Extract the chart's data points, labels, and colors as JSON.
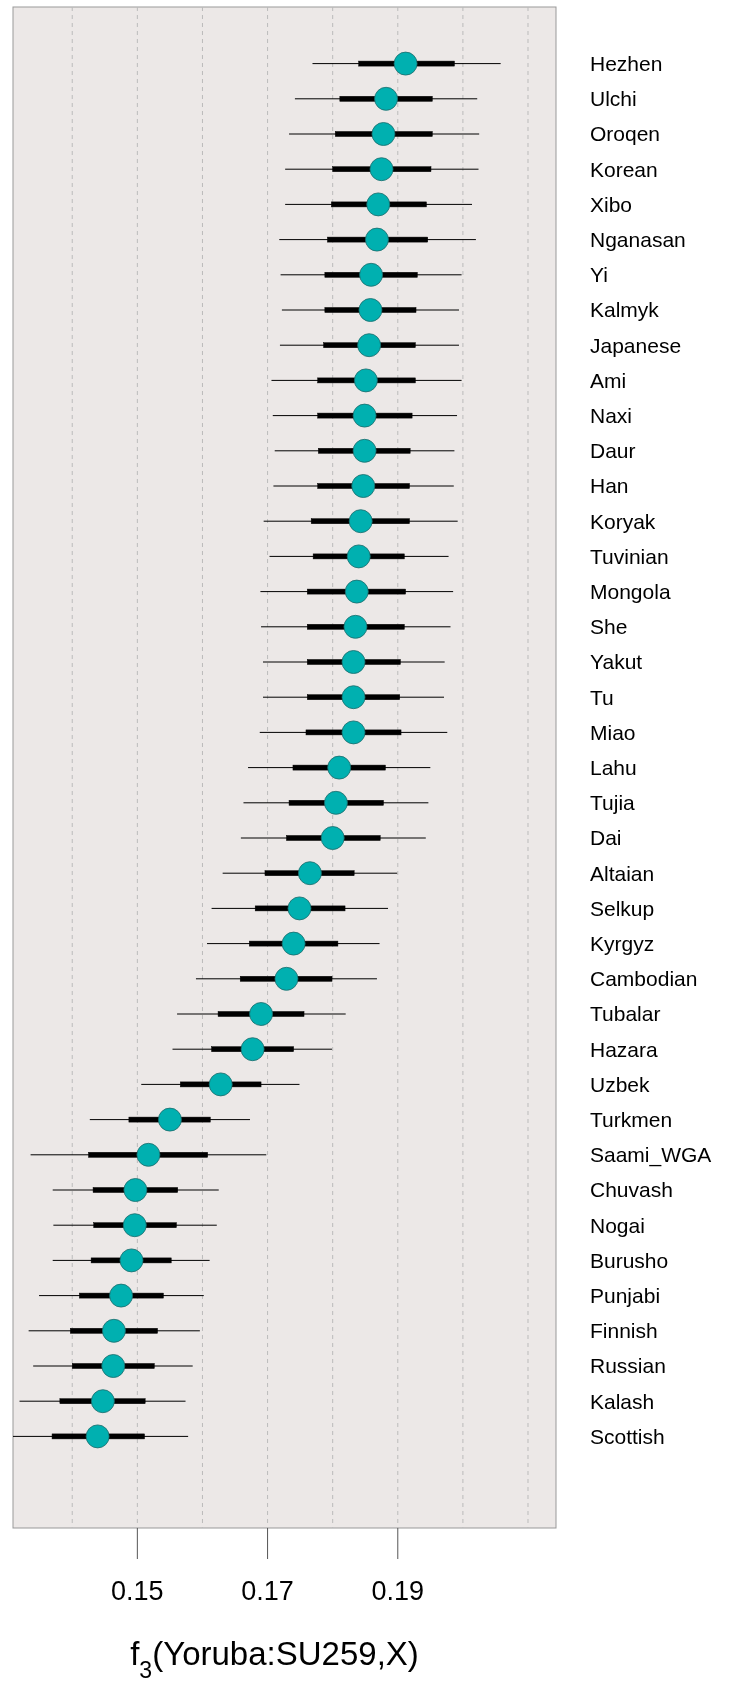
{
  "chart_data": {
    "type": "box",
    "orientation": "horizontal",
    "xlabel": "f$_{3}$(Yoruba:SU259,X)",
    "categories": [
      "Hezhen",
      "Ulchi",
      "Oroqen",
      "Korean",
      "Xibo",
      "Nganasan",
      "Yi",
      "Kalmyk",
      "Japanese",
      "Ami",
      "Naxi",
      "Daur",
      "Han",
      "Koryak",
      "Tuvinian",
      "Mongola",
      "She",
      "Yakut",
      "Tu",
      "Miao",
      "Lahu",
      "Tujia",
      "Dai",
      "Altaian",
      "Selkup",
      "Kyrgyz",
      "Cambodian",
      "Tubalar",
      "Hazara",
      "Uzbek",
      "Turkmen",
      "Saami_WGA",
      "Chuvash",
      "Nogai",
      "Burusho",
      "Punjabi",
      "Finnish",
      "Russian",
      "Kalash",
      "Scottish"
    ],
    "xlim": [
      0.1309,
      0.2143
    ],
    "xticks": [
      {
        "value": 0.14,
        "label": null
      },
      0.15,
      {
        "value": 0.16,
        "label": null
      },
      0.17,
      {
        "value": 0.18,
        "label": null
      },
      0.19,
      {
        "value": 0.2,
        "label": null
      },
      {
        "value": 0.21,
        "label": null
      }
    ],
    "grid": "x",
    "marker": "circle",
    "series": [
      {
        "type": "scatter",
        "color": "#00b0b0",
        "values": [
          0.1912,
          0.1882,
          0.1878,
          0.1875,
          0.187,
          0.1868,
          0.1859,
          0.1858,
          0.1856,
          0.1851,
          0.1849,
          0.1849,
          0.1847,
          0.1843,
          0.184,
          0.1837,
          0.1835,
          0.1832,
          0.1832,
          0.1832,
          0.181,
          0.1805,
          0.18,
          0.1765,
          0.1749,
          0.174,
          0.1729,
          0.169,
          0.1677,
          0.1628,
          0.155,
          0.1517,
          0.1497,
          0.1496,
          0.1491,
          0.1475,
          0.1464,
          0.1463,
          0.1447,
          0.1439
        ]
      },
      {
        "type": "box",
        "color": "#000000",
        "boxes": [
          {
            "low": 0.1769,
            "q1": 0.184,
            "q3": 0.1987,
            "high": 0.2058
          },
          {
            "low": 0.1742,
            "q1": 0.1811,
            "q3": 0.1953,
            "high": 0.2022
          },
          {
            "low": 0.1733,
            "q1": 0.1804,
            "q3": 0.1953,
            "high": 0.2025
          },
          {
            "low": 0.1727,
            "q1": 0.18,
            "q3": 0.1951,
            "high": 0.2024
          },
          {
            "low": 0.1727,
            "q1": 0.1798,
            "q3": 0.1944,
            "high": 0.2014
          },
          {
            "low": 0.1718,
            "q1": 0.1792,
            "q3": 0.1946,
            "high": 0.202
          },
          {
            "low": 0.172,
            "q1": 0.1788,
            "q3": 0.193,
            "high": 0.1998
          },
          {
            "low": 0.1722,
            "q1": 0.1788,
            "q3": 0.1928,
            "high": 0.1994
          },
          {
            "low": 0.1719,
            "q1": 0.1786,
            "q3": 0.1927,
            "high": 0.1994
          },
          {
            "low": 0.1706,
            "q1": 0.1777,
            "q3": 0.1927,
            "high": 0.1998
          },
          {
            "low": 0.1708,
            "q1": 0.1777,
            "q3": 0.1922,
            "high": 0.1991
          },
          {
            "low": 0.1711,
            "q1": 0.1778,
            "q3": 0.1919,
            "high": 0.1987
          },
          {
            "low": 0.1709,
            "q1": 0.1777,
            "q3": 0.1918,
            "high": 0.1986
          },
          {
            "low": 0.1694,
            "q1": 0.1767,
            "q3": 0.1918,
            "high": 0.1992
          },
          {
            "low": 0.1703,
            "q1": 0.177,
            "q3": 0.191,
            "high": 0.1978
          },
          {
            "low": 0.1689,
            "q1": 0.1761,
            "q3": 0.1912,
            "high": 0.1985
          },
          {
            "low": 0.169,
            "q1": 0.1761,
            "q3": 0.191,
            "high": 0.1981
          },
          {
            "low": 0.1693,
            "q1": 0.1761,
            "q3": 0.1904,
            "high": 0.1972
          },
          {
            "low": 0.1693,
            "q1": 0.1761,
            "q3": 0.1903,
            "high": 0.1971
          },
          {
            "low": 0.1688,
            "q1": 0.1759,
            "q3": 0.1905,
            "high": 0.1976
          },
          {
            "low": 0.167,
            "q1": 0.1739,
            "q3": 0.1881,
            "high": 0.195
          },
          {
            "low": 0.1663,
            "q1": 0.1733,
            "q3": 0.1878,
            "high": 0.1947
          },
          {
            "low": 0.1659,
            "q1": 0.1729,
            "q3": 0.1873,
            "high": 0.1943
          },
          {
            "low": 0.1631,
            "q1": 0.1696,
            "q3": 0.1833,
            "high": 0.1899
          },
          {
            "low": 0.1614,
            "q1": 0.1681,
            "q3": 0.1819,
            "high": 0.1885
          },
          {
            "low": 0.1607,
            "q1": 0.1672,
            "q3": 0.1808,
            "high": 0.1872
          },
          {
            "low": 0.159,
            "q1": 0.1658,
            "q3": 0.1799,
            "high": 0.1868
          },
          {
            "low": 0.1561,
            "q1": 0.1624,
            "q3": 0.1756,
            "high": 0.182
          },
          {
            "low": 0.1554,
            "q1": 0.1614,
            "q3": 0.174,
            "high": 0.1799
          },
          {
            "low": 0.1506,
            "q1": 0.1566,
            "q3": 0.169,
            "high": 0.1749
          },
          {
            "low": 0.1427,
            "q1": 0.1487,
            "q3": 0.1612,
            "high": 0.1673
          },
          {
            "low": 0.1336,
            "q1": 0.1425,
            "q3": 0.1608,
            "high": 0.1698
          },
          {
            "low": 0.137,
            "q1": 0.1432,
            "q3": 0.1562,
            "high": 0.1625
          },
          {
            "low": 0.1371,
            "q1": 0.1433,
            "q3": 0.156,
            "high": 0.1622
          },
          {
            "low": 0.137,
            "q1": 0.1429,
            "q3": 0.1552,
            "high": 0.1611
          },
          {
            "low": 0.1349,
            "q1": 0.1411,
            "q3": 0.154,
            "high": 0.1602
          },
          {
            "low": 0.1333,
            "q1": 0.1397,
            "q3": 0.1531,
            "high": 0.1596
          },
          {
            "low": 0.134,
            "q1": 0.14,
            "q3": 0.1526,
            "high": 0.1585
          },
          {
            "low": 0.1319,
            "q1": 0.1381,
            "q3": 0.1512,
            "high": 0.1574
          },
          {
            "low": 0.1309,
            "q1": 0.1369,
            "q3": 0.1511,
            "high": 0.1578
          }
        ]
      }
    ]
  }
}
